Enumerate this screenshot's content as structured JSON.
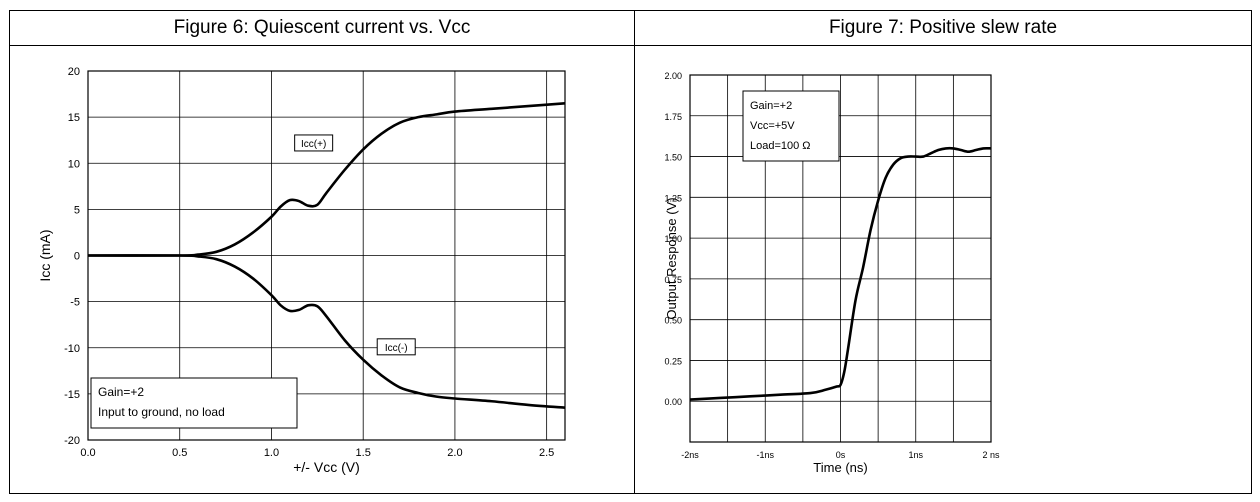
{
  "charts": [
    {
      "title": "Figure 6: Quiescent current vs. Vcc",
      "chart_data": {
        "type": "line",
        "title": "Figure 6: Quiescent current vs. Vcc",
        "xlabel": "+/- Vcc  (V)",
        "ylabel": "Icc  (mA)",
        "xlim": [
          0,
          2.6
        ],
        "ylim": [
          -20,
          20
        ],
        "x_ticks": [
          0,
          0.5,
          1,
          1.5,
          2,
          2.5
        ],
        "x_tick_labels": [
          "0.0",
          "0.5",
          "1.0",
          "1.5",
          "2.0",
          "2.5"
        ],
        "y_ticks": [
          -20,
          -15,
          -10,
          -5,
          0,
          5,
          10,
          15,
          20
        ],
        "y_tick_labels": [
          "-20",
          "-15",
          "-10",
          "-5",
          "0",
          "5",
          "10",
          "15",
          "20"
        ],
        "grid": true,
        "series": [
          {
            "name": "Icc(+)",
            "x": [
              0,
              0.5,
              0.6,
              0.7,
              0.8,
              0.9,
              1.0,
              1.05,
              1.1,
              1.15,
              1.2,
              1.25,
              1.3,
              1.4,
              1.5,
              1.6,
              1.7,
              1.8,
              1.9,
              2.0,
              2.2,
              2.4,
              2.6
            ],
            "y": [
              0,
              0,
              0.1,
              0.4,
              1.2,
              2.5,
              4.2,
              5.3,
              6.0,
              5.9,
              5.4,
              5.5,
              6.8,
              9.3,
              11.5,
              13.2,
              14.4,
              15.0,
              15.3,
              15.6,
              15.9,
              16.2,
              16.5
            ]
          },
          {
            "name": "Icc(-)",
            "x": [
              0,
              0.5,
              0.6,
              0.7,
              0.8,
              0.9,
              1.0,
              1.05,
              1.1,
              1.15,
              1.2,
              1.25,
              1.3,
              1.4,
              1.5,
              1.6,
              1.7,
              1.8,
              1.9,
              2.0,
              2.2,
              2.4,
              2.6
            ],
            "y": [
              0,
              0,
              -0.1,
              -0.4,
              -1.2,
              -2.5,
              -4.3,
              -5.4,
              -6.0,
              -5.9,
              -5.4,
              -5.5,
              -6.6,
              -9.2,
              -11.3,
              -13.0,
              -14.3,
              -14.9,
              -15.3,
              -15.5,
              -15.8,
              -16.2,
              -16.5
            ]
          }
        ],
        "annotations": [
          {
            "text": "Icc(+)",
            "x": 1.23,
            "y": 12.2
          },
          {
            "text": "Icc(-)",
            "x": 1.68,
            "y": -9.9
          }
        ],
        "legend_box": [
          "Gain=+2",
          "Input to ground, no load"
        ]
      }
    },
    {
      "title": "Figure 7: Positive slew rate",
      "chart_data": {
        "type": "line",
        "title": "Figure 7: Positive slew rate",
        "xlabel": "Time (ns)",
        "ylabel": "Output Response (V)",
        "xlim": [
          -2,
          2
        ],
        "ylim": [
          -0.25,
          2.0
        ],
        "x_ticks": [
          -2,
          -1,
          0,
          1,
          2
        ],
        "x_tick_labels": [
          "-2ns",
          "-1ns",
          "0s",
          "1ns",
          "2 ns"
        ],
        "x_grid": [
          -2,
          -1.5,
          -1,
          -0.5,
          0,
          0.5,
          1,
          1.5,
          2
        ],
        "y_ticks": [
          0,
          0.25,
          0.5,
          0.75,
          1.0,
          1.25,
          1.5,
          1.75,
          2.0
        ],
        "y_tick_labels": [
          "0.00",
          "0.25",
          "0.50",
          "0.75",
          "1.00",
          "1.25",
          "1.50",
          "1.75",
          "2.00"
        ],
        "grid": true,
        "series": [
          {
            "name": "",
            "x": [
              -2.0,
              -1.6,
              -1.2,
              -0.8,
              -0.4,
              -0.2,
              -0.05,
              0.0,
              0.05,
              0.1,
              0.2,
              0.3,
              0.4,
              0.5,
              0.6,
              0.7,
              0.8,
              0.9,
              1.0,
              1.1,
              1.2,
              1.3,
              1.4,
              1.5,
              1.6,
              1.7,
              1.8,
              1.9,
              2.0
            ],
            "y": [
              0.01,
              0.02,
              0.03,
              0.04,
              0.05,
              0.07,
              0.09,
              0.1,
              0.18,
              0.32,
              0.62,
              0.82,
              1.05,
              1.23,
              1.37,
              1.45,
              1.49,
              1.5,
              1.5,
              1.5,
              1.52,
              1.54,
              1.55,
              1.55,
              1.54,
              1.53,
              1.54,
              1.55,
              1.55
            ]
          }
        ],
        "legend_box": [
          "Gain=+2",
          "Vcc=+5V",
          "Load=100 Ω"
        ]
      }
    }
  ]
}
